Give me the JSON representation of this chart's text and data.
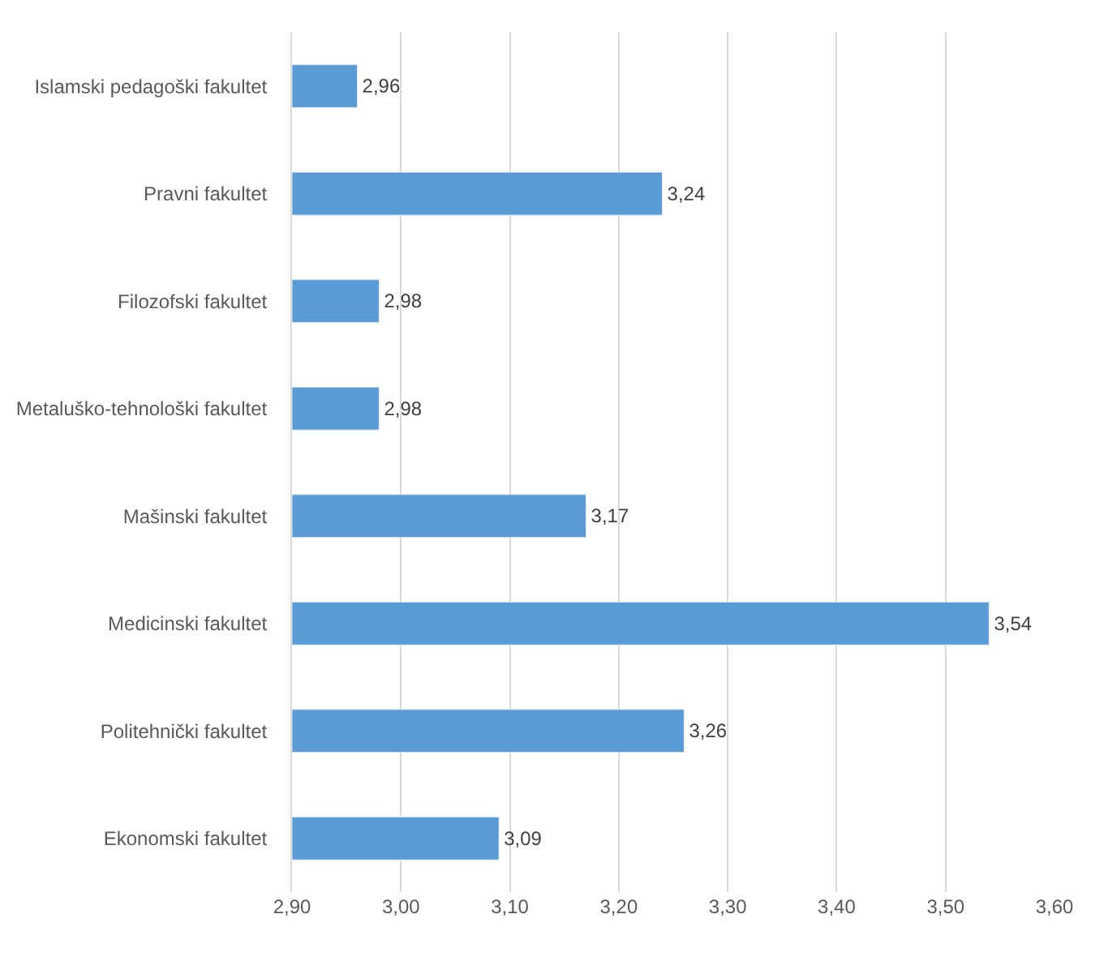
{
  "chart_data": {
    "type": "bar",
    "orientation": "horizontal",
    "categories": [
      "Islamski pedagoški fakultet",
      "Pravni fakultet",
      "Filozofski fakultet",
      "Metaluško-tehnološki fakultet",
      "Mašinski fakultet",
      "Medicinski fakultet",
      "Politehnički fakultet",
      "Ekonomski fakultet"
    ],
    "values": [
      2.96,
      3.24,
      2.98,
      2.98,
      3.17,
      3.54,
      3.26,
      3.09
    ],
    "value_labels": [
      "2,96",
      "3,24",
      "2,98",
      "2,98",
      "3,17",
      "3,54",
      "3,26",
      "3,09"
    ],
    "color": "#5b9bd5",
    "xlim": [
      2.9,
      3.6
    ],
    "xticks": [
      {
        "value": 2.9,
        "label": "2,90"
      },
      {
        "value": 3.0,
        "label": "3,00"
      },
      {
        "value": 3.1,
        "label": "3,10"
      },
      {
        "value": 3.2,
        "label": "3,20"
      },
      {
        "value": 3.3,
        "label": "3,30"
      },
      {
        "value": 3.4,
        "label": "3,40"
      },
      {
        "value": 3.5,
        "label": "3,50"
      },
      {
        "value": 3.6,
        "label": "3,60"
      }
    ],
    "grid": "x",
    "legend": false
  }
}
